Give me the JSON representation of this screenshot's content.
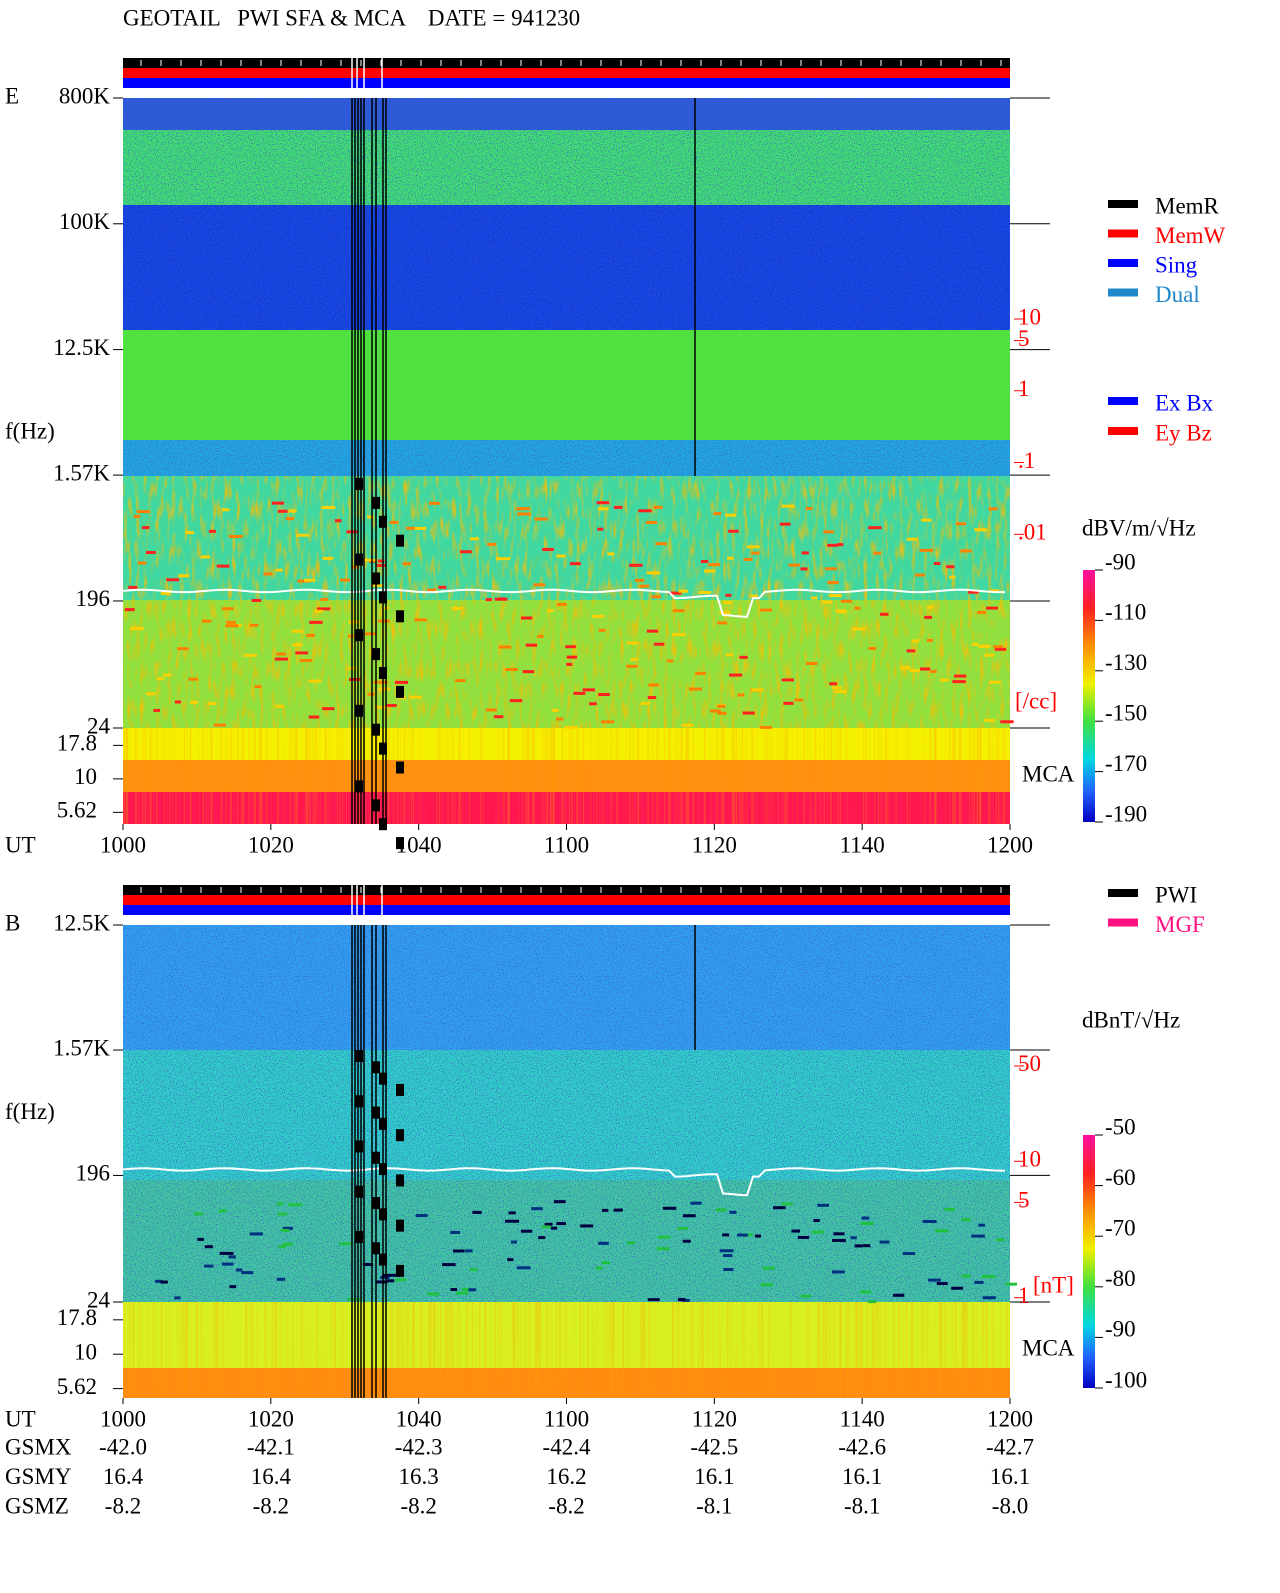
{
  "title": "GEOTAIL   PWI SFA & MCA    DATE = 941230",
  "chart_data": [
    {
      "type": "spectrogram",
      "panel_label": "E",
      "y_label": "f(Hz)",
      "x_label": "UT",
      "xticks": [
        "1000",
        "1020",
        "1040",
        "1100",
        "1120",
        "1140",
        "1200"
      ],
      "log_scale": true,
      "ylim": [
        24,
        800000
      ],
      "yticks": [
        {
          "value": 800000,
          "label": "800K"
        },
        {
          "value": 100000,
          "label": "100K"
        },
        {
          "value": 12500,
          "label": "12.5K"
        },
        {
          "value": 1570,
          "label": "1.57K"
        },
        196,
        24
      ],
      "mca_label": "MCA",
      "mca_ylim": [
        4.6,
        24
      ],
      "mca_yticks": [
        17.8,
        10,
        5.62
      ],
      "density_ylim": [
        2e-05,
        12000
      ],
      "density_yticks": [
        10,
        5,
        1,
        {
          "value": 0.1,
          "label": ".1"
        },
        {
          "value": 0.01,
          "label": ".01"
        }
      ],
      "density_unit": "[/cc]",
      "colorbar_label": "dBV/m/√Hz",
      "colorbar_lim": [
        -90,
        -190
      ],
      "colorbar_ticks": [
        -90,
        -110,
        -130,
        -150,
        -170,
        -190
      ],
      "status_legend": [
        {
          "name": "MemR",
          "color": "#000000"
        },
        {
          "name": "MemW",
          "color": "#ff0000"
        },
        {
          "name": "Sing",
          "color": "#0000ff"
        },
        {
          "name": "Dual",
          "color": "#2088c8"
        }
      ],
      "channel_legend": [
        {
          "name": "Ex Bx",
          "color": "#0000ff"
        },
        {
          "name": "Ey Bz",
          "color": "#ff0000"
        }
      ]
    },
    {
      "type": "spectrogram",
      "panel_label": "B",
      "y_label": "f(Hz)",
      "x_label": "UT",
      "xticks": [
        "1000",
        "1020",
        "1040",
        "1100",
        "1120",
        "1140",
        "1200"
      ],
      "log_scale": true,
      "ylim": [
        24,
        12500
      ],
      "yticks": [
        {
          "value": 12500,
          "label": "12.5K"
        },
        {
          "value": 1570,
          "label": "1.57K"
        },
        196,
        24
      ],
      "mca_label": "MCA",
      "mca_ylim": [
        4.8,
        24
      ],
      "mca_yticks": [
        17.8,
        10,
        5.62
      ],
      "density_ylim": [
        0.93,
        540
      ],
      "density_yticks": [
        50,
        10,
        5,
        1
      ],
      "density_unit": "[nT]",
      "colorbar_label": "dBnT/√Hz",
      "colorbar_lim": [
        -50,
        -100
      ],
      "colorbar_ticks": [
        -50,
        -60,
        -70,
        -80,
        -90,
        -100
      ],
      "status_legend": [
        {
          "name": "PWI",
          "color": "#000000"
        },
        {
          "name": "MGF",
          "color": "#ff1080"
        }
      ]
    }
  ],
  "ephemeris": {
    "rows": [
      {
        "name": "GSMX",
        "values": [
          "-42.0",
          "-42.1",
          "-42.3",
          "-42.4",
          "-42.5",
          "-42.6",
          "-42.7"
        ]
      },
      {
        "name": "GSMY",
        "values": [
          "16.4",
          "16.4",
          "16.3",
          "16.2",
          "16.1",
          "16.1",
          "16.1"
        ]
      },
      {
        "name": "GSMZ",
        "values": [
          "-8.2",
          "-8.2",
          "-8.2",
          "-8.2",
          "-8.1",
          "-8.1",
          "-8.0"
        ]
      }
    ]
  }
}
